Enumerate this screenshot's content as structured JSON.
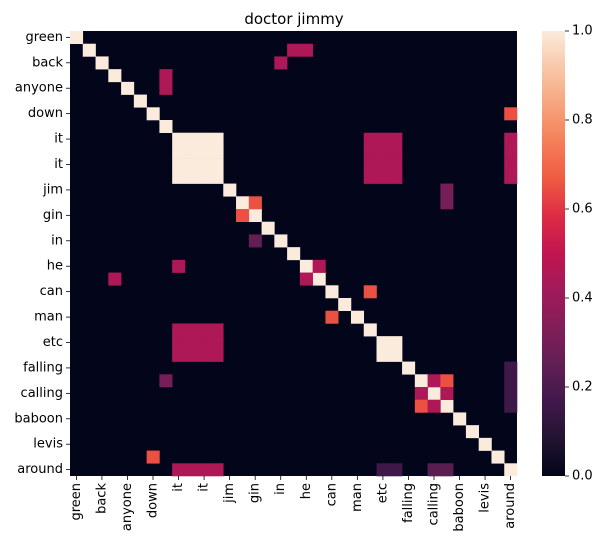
{
  "chart_data": {
    "type": "heatmap",
    "title": "doctor jimmy",
    "row_labels": [
      "green",
      "back",
      "anyone",
      "down",
      "it",
      "it",
      "jim",
      "gin",
      "in",
      "he",
      "can",
      "man",
      "etc",
      "falling",
      "calling",
      "baboon",
      "levis",
      "around"
    ],
    "col_labels": [
      "green",
      "back",
      "anyone",
      "down",
      "it",
      "it",
      "jim",
      "gin",
      "in",
      "he",
      "can",
      "man",
      "etc",
      "falling",
      "calling",
      "baboon",
      "levis",
      "around"
    ],
    "n": 35,
    "row_label_indices": [
      0,
      2,
      4,
      6,
      8,
      10,
      12,
      14,
      16,
      18,
      20,
      22,
      24,
      26,
      28,
      30,
      32,
      34
    ],
    "col_label_indices": [
      0,
      2,
      4,
      6,
      8,
      10,
      12,
      14,
      16,
      18,
      20,
      22,
      24,
      26,
      28,
      30,
      32,
      34
    ],
    "vmin": 0.0,
    "vmax": 1.0,
    "colorbar_ticks": [
      "0.0",
      "0.2",
      "0.4",
      "0.6",
      "0.8",
      "1.0"
    ],
    "colorbar_tick_values": [
      0.0,
      0.2,
      0.4,
      0.6,
      0.8,
      1.0
    ],
    "colormap": [
      "#03051a",
      "#221331",
      "#41184c",
      "#611f53",
      "#821e5a",
      "#a11a5b",
      "#c1154f",
      "#dd2c45",
      "#ef5a41",
      "#f47e58",
      "#f6a47c",
      "#f8c7a8",
      "#faebdd"
    ],
    "cells": [
      [
        0,
        0,
        1.0
      ],
      [
        1,
        1,
        1.0
      ],
      [
        2,
        2,
        1.0
      ],
      [
        3,
        3,
        1.0
      ],
      [
        4,
        4,
        1.0
      ],
      [
        5,
        5,
        1.0
      ],
      [
        6,
        6,
        1.0
      ],
      [
        7,
        7,
        1.0
      ],
      [
        8,
        8,
        1.0
      ],
      [
        9,
        9,
        1.0
      ],
      [
        10,
        10,
        1.0
      ],
      [
        11,
        11,
        1.0
      ],
      [
        12,
        12,
        1.0
      ],
      [
        13,
        13,
        1.0
      ],
      [
        14,
        14,
        1.0
      ],
      [
        15,
        15,
        1.0
      ],
      [
        16,
        16,
        1.0
      ],
      [
        17,
        17,
        1.0
      ],
      [
        18,
        18,
        1.0
      ],
      [
        19,
        19,
        1.0
      ],
      [
        20,
        20,
        1.0
      ],
      [
        21,
        21,
        1.0
      ],
      [
        22,
        22,
        1.0
      ],
      [
        23,
        23,
        1.0
      ],
      [
        24,
        24,
        1.0
      ],
      [
        25,
        25,
        1.0
      ],
      [
        26,
        26,
        1.0
      ],
      [
        27,
        27,
        1.0
      ],
      [
        28,
        28,
        1.0
      ],
      [
        29,
        29,
        1.0
      ],
      [
        30,
        30,
        1.0
      ],
      [
        31,
        31,
        1.0
      ],
      [
        32,
        32,
        1.0
      ],
      [
        33,
        33,
        1.0
      ],
      [
        34,
        34,
        1.0
      ],
      [
        8,
        9,
        1.0
      ],
      [
        8,
        10,
        1.0
      ],
      [
        8,
        11,
        1.0
      ],
      [
        9,
        8,
        1.0
      ],
      [
        9,
        10,
        1.0
      ],
      [
        9,
        11,
        1.0
      ],
      [
        10,
        8,
        1.0
      ],
      [
        10,
        9,
        1.0
      ],
      [
        10,
        11,
        1.0
      ],
      [
        11,
        8,
        1.0
      ],
      [
        11,
        9,
        1.0
      ],
      [
        11,
        10,
        1.0
      ],
      [
        24,
        25,
        1.0
      ],
      [
        25,
        24,
        1.0
      ],
      [
        13,
        14,
        0.65
      ],
      [
        14,
        13,
        0.65
      ],
      [
        1,
        17,
        0.45
      ],
      [
        1,
        18,
        0.45
      ],
      [
        2,
        16,
        0.45
      ],
      [
        3,
        7,
        0.45
      ],
      [
        4,
        7,
        0.45
      ],
      [
        8,
        23,
        0.45
      ],
      [
        9,
        23,
        0.45
      ],
      [
        10,
        23,
        0.45
      ],
      [
        11,
        23,
        0.45
      ],
      [
        8,
        24,
        0.45
      ],
      [
        9,
        24,
        0.45
      ],
      [
        10,
        24,
        0.45
      ],
      [
        11,
        24,
        0.45
      ],
      [
        8,
        25,
        0.45
      ],
      [
        9,
        25,
        0.45
      ],
      [
        10,
        25,
        0.45
      ],
      [
        11,
        25,
        0.45
      ],
      [
        23,
        8,
        0.45
      ],
      [
        23,
        9,
        0.45
      ],
      [
        23,
        10,
        0.45
      ],
      [
        23,
        11,
        0.45
      ],
      [
        24,
        8,
        0.45
      ],
      [
        24,
        9,
        0.45
      ],
      [
        24,
        10,
        0.45
      ],
      [
        24,
        11,
        0.45
      ],
      [
        25,
        8,
        0.45
      ],
      [
        25,
        9,
        0.45
      ],
      [
        25,
        10,
        0.45
      ],
      [
        25,
        11,
        0.45
      ],
      [
        8,
        34,
        0.45
      ],
      [
        9,
        34,
        0.45
      ],
      [
        10,
        34,
        0.45
      ],
      [
        11,
        34,
        0.45
      ],
      [
        26,
        34,
        0.16
      ],
      [
        27,
        34,
        0.16
      ],
      [
        28,
        34,
        0.16
      ],
      [
        29,
        34,
        0.16
      ],
      [
        34,
        8,
        0.45
      ],
      [
        34,
        9,
        0.45
      ],
      [
        34,
        10,
        0.45
      ],
      [
        34,
        11,
        0.45
      ],
      [
        34,
        24,
        0.16
      ],
      [
        34,
        25,
        0.16
      ],
      [
        34,
        28,
        0.23
      ],
      [
        34,
        29,
        0.23
      ],
      [
        18,
        19,
        0.45
      ],
      [
        18,
        8,
        0.45
      ],
      [
        19,
        18,
        0.45
      ],
      [
        19,
        3,
        0.45
      ],
      [
        6,
        34,
        0.65
      ],
      [
        33,
        6,
        0.65
      ],
      [
        20,
        23,
        0.65
      ],
      [
        22,
        20,
        0.65
      ],
      [
        27,
        28,
        0.45
      ],
      [
        28,
        27,
        0.45
      ],
      [
        27,
        29,
        0.65
      ],
      [
        29,
        27,
        0.65
      ],
      [
        28,
        29,
        0.45
      ],
      [
        29,
        28,
        0.45
      ],
      [
        12,
        29,
        0.3
      ],
      [
        13,
        29,
        0.3
      ],
      [
        12,
        0,
        0.0
      ],
      [
        27,
        7,
        0.3
      ],
      [
        16,
        14,
        0.25
      ]
    ]
  }
}
